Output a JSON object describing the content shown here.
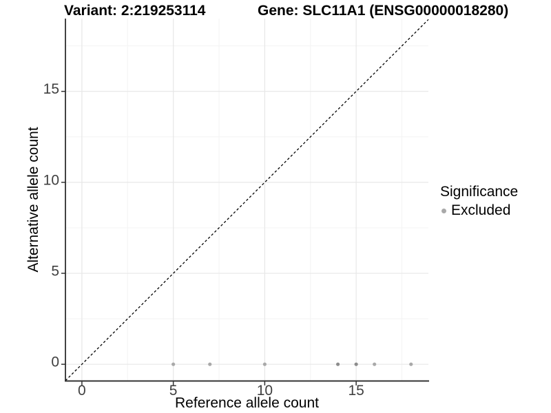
{
  "chart_data": {
    "type": "scatter",
    "titles": [
      "Variant: 2:219253114",
      "Gene: SLC11A1 (ENSG00000018280)"
    ],
    "xlabel": "Reference allele count",
    "ylabel": "Alternative allele count",
    "xlim": [
      -0.9,
      18.95
    ],
    "ylim": [
      -0.9,
      19.0
    ],
    "x_ticks": [
      0,
      5,
      10,
      15
    ],
    "y_ticks": [
      0,
      5,
      10,
      15
    ],
    "x_minor_gridlines": [
      2.5,
      7.5,
      12.5,
      17.5
    ],
    "y_minor_gridlines": [
      2.5,
      7.5,
      12.5,
      17.5
    ],
    "grid": "major+minor",
    "identity_line": {
      "slope": 1,
      "intercept": 0,
      "style": "dashed",
      "color": "#000000"
    },
    "legend": {
      "title": "Significance",
      "position": "right",
      "items": [
        {
          "label": "Excluded",
          "color": "#a9a9a9"
        }
      ]
    },
    "series": [
      {
        "name": "Excluded",
        "points": [
          {
            "x": 5,
            "y": 0,
            "color": "#a9a9a9"
          },
          {
            "x": 7,
            "y": 0,
            "color": "#a9a9a9"
          },
          {
            "x": 10,
            "y": 0,
            "color": "#a9a9a9"
          },
          {
            "x": 14,
            "y": 0,
            "color": "#8c8c8c"
          },
          {
            "x": 15,
            "y": 0,
            "color": "#8c8c8c"
          },
          {
            "x": 16,
            "y": 0,
            "color": "#a9a9a9"
          },
          {
            "x": 18,
            "y": 0,
            "color": "#a9a9a9"
          }
        ]
      }
    ],
    "colors": {
      "grid_major": "#e7e7e7",
      "grid_minor": "#f3f3f3",
      "axis_line": "#333333",
      "tick_mark": "#333333",
      "tick_label": "#404040",
      "background": "#ffffff"
    }
  }
}
